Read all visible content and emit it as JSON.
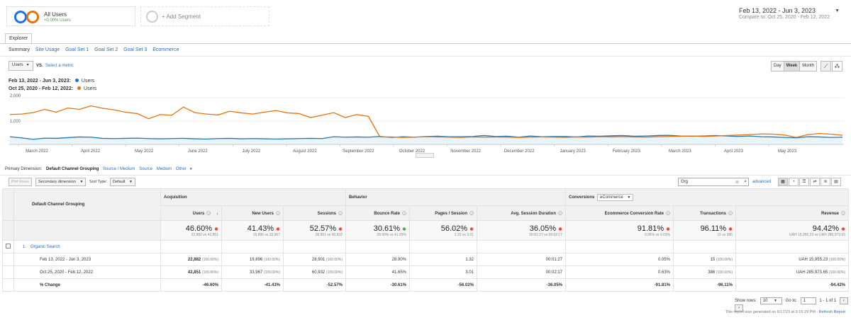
{
  "segments": {
    "primary_title": "All Users",
    "primary_sub": "+0.00% Users",
    "add_label": "+ Add Segment"
  },
  "daterange": {
    "main": "Feb 13, 2022 - Jun 3, 2023",
    "compare": "Compare to: Oct 25, 2020 - Feb 12, 2022"
  },
  "tabs": {
    "explorer": "Explorer"
  },
  "subtabs": [
    "Summary",
    "Site Usage",
    "Goal Set 1",
    "Goal Set 2",
    "Goal Set 3",
    "Ecommerce"
  ],
  "metric": {
    "selected": "Users",
    "vs": "VS.",
    "select_metric": "Select a metric"
  },
  "granularity": [
    "Day",
    "Week",
    "Month"
  ],
  "legend": [
    {
      "range": "Feb 13, 2022 - Jun 3, 2023:",
      "name": "Users",
      "color": "#1f77b4"
    },
    {
      "range": "Oct 25, 2020 - Feb 12, 2022:",
      "name": "Users",
      "color": "#e8710a"
    }
  ],
  "chart_data": {
    "type": "line",
    "y_ticks": [
      "2,000",
      "1,000"
    ],
    "ylim": [
      0,
      2200
    ],
    "x_tick_labels": [
      "March 2022",
      "April 2022",
      "May 2022",
      "June 2022",
      "July 2022",
      "August 2022",
      "September 2022",
      "October 2022",
      "November 2022",
      "December 2022",
      "January 2023",
      "February 2023",
      "March 2023",
      "April 2023",
      "May 2023"
    ],
    "series": [
      {
        "name": "Users",
        "color": "#1f77b4",
        "values": [
          330,
          280,
          220,
          270,
          260,
          290,
          320,
          310,
          260,
          250,
          260,
          270,
          250,
          240,
          250,
          260,
          240,
          230,
          250,
          260,
          240,
          250,
          240,
          230,
          240,
          250,
          260,
          250,
          330,
          310,
          320,
          310,
          340,
          300,
          330,
          310,
          340,
          350,
          330,
          330,
          340,
          380,
          340,
          350,
          310,
          360,
          330,
          340,
          340,
          320,
          360,
          350,
          370,
          380,
          350,
          360,
          380,
          390,
          360,
          350,
          360,
          380,
          360,
          340,
          360,
          330,
          320,
          300,
          280,
          330,
          320,
          300,
          310
        ]
      },
      {
        "name": "Users",
        "color": "#e8710a",
        "values": [
          1280,
          1300,
          1360,
          1500,
          1380,
          1560,
          1500,
          1650,
          1550,
          1480,
          1380,
          1320,
          1100,
          1280,
          1250,
          1600,
          1360,
          1300,
          1260,
          1420,
          1350,
          1300,
          1380,
          1450,
          1350,
          1320,
          1150,
          1250,
          1360,
          1150,
          1280,
          1200,
          320,
          320,
          300,
          310,
          330,
          320,
          310,
          300,
          320,
          310,
          320,
          310,
          300,
          310,
          320,
          310,
          300,
          320,
          310,
          330,
          320,
          330,
          320,
          310,
          330,
          340,
          350,
          360,
          340,
          360,
          380,
          400,
          420,
          450,
          440,
          400,
          300,
          420,
          470,
          440,
          390
        ]
      }
    ]
  },
  "dimension": {
    "label": "Primary Dimension:",
    "active": "Default Channel Grouping",
    "options": [
      "Source / Medium",
      "Source",
      "Medium",
      "Other"
    ]
  },
  "toolbar": {
    "plot_rows": "Plot Rows",
    "secondary": "Secondary dimension",
    "sort_type_label": "Sort Type:",
    "sort_type": "Default",
    "search_value": "Org",
    "advanced": "advanced"
  },
  "table": {
    "dim_header": "Default Channel Grouping",
    "groups": {
      "acquisition": "Acquisition",
      "behavior": "Behavior",
      "conversions": "Conversions",
      "conv_select": "eCommerce"
    },
    "columns": [
      "Users",
      "New Users",
      "Sessions",
      "Bounce Rate",
      "Pages / Session",
      "Avg. Session Duration",
      "Ecommerce Conversion Rate",
      "Transactions",
      "Revenue"
    ],
    "totals": [
      {
        "big": "46.60%",
        "sub": "22,882 vs 42,851",
        "dir": "down"
      },
      {
        "big": "41.43%",
        "sub": "19,896 vs 33,967",
        "dir": "down"
      },
      {
        "big": "52.57%",
        "sub": "28,901 vs 60,932",
        "dir": "down"
      },
      {
        "big": "30.61%",
        "sub": "28.90% vs 41.65%",
        "dir": "up"
      },
      {
        "big": "56.02%",
        "sub": "1.32 vs 3.01",
        "dir": "down"
      },
      {
        "big": "36.05%",
        "sub": "00:01:27 vs 00:02:17",
        "dir": "down"
      },
      {
        "big": "91.81%",
        "sub": "0.05% vs 0.63%",
        "dir": "down"
      },
      {
        "big": "96.11%",
        "sub": "15 vs 386",
        "dir": "down"
      },
      {
        "big": "94.42%",
        "sub": "UAH 15,955.23 vs UAH 285,973.65",
        "dir": "down"
      }
    ],
    "row_index": "1.",
    "row_name": "Organic Search",
    "rows": [
      {
        "label": "Feb 13, 2022 - Jun 3, 2023",
        "users": "22,882",
        "users_pct": "(100.00%)",
        "new": "19,896",
        "new_pct": "(100.00%)",
        "sessions": "28,901",
        "sessions_pct": "(100.00%)",
        "bounce": "28.90%",
        "pages": "1.32",
        "dur": "00:01:27",
        "conv": "0.05%",
        "trans": "15",
        "trans_pct": "(100.00%)",
        "rev": "UAH 15,955.23",
        "rev_pct": "(100.00%)"
      },
      {
        "label": "Oct 25, 2020 - Feb 12, 2022",
        "users": "42,851",
        "users_pct": "(100.00%)",
        "new": "33,967",
        "new_pct": "(100.00%)",
        "sessions": "60,932",
        "sessions_pct": "(100.00%)",
        "bounce": "41.65%",
        "pages": "3.01",
        "dur": "00:02:17",
        "conv": "0.63%",
        "trans": "386",
        "trans_pct": "(100.00%)",
        "rev": "UAH 285,973.65",
        "rev_pct": "(100.00%)"
      }
    ],
    "change": {
      "label": "% Change",
      "values": [
        "-46.60%",
        "-41.43%",
        "-52.57%",
        "-30.61%",
        "-56.02%",
        "-36.05%",
        "-91.81%",
        "-96.11%",
        "-94.42%"
      ]
    }
  },
  "pager": {
    "show_rows": "Show rows:",
    "rows_value": "10",
    "goto": "Go to:",
    "goto_value": "1",
    "range": "1 - 1 of 1"
  },
  "footer_note": "This report was generated on 6/17/23 at 9:15:29 PM -",
  "refresh": "Refresh Report"
}
